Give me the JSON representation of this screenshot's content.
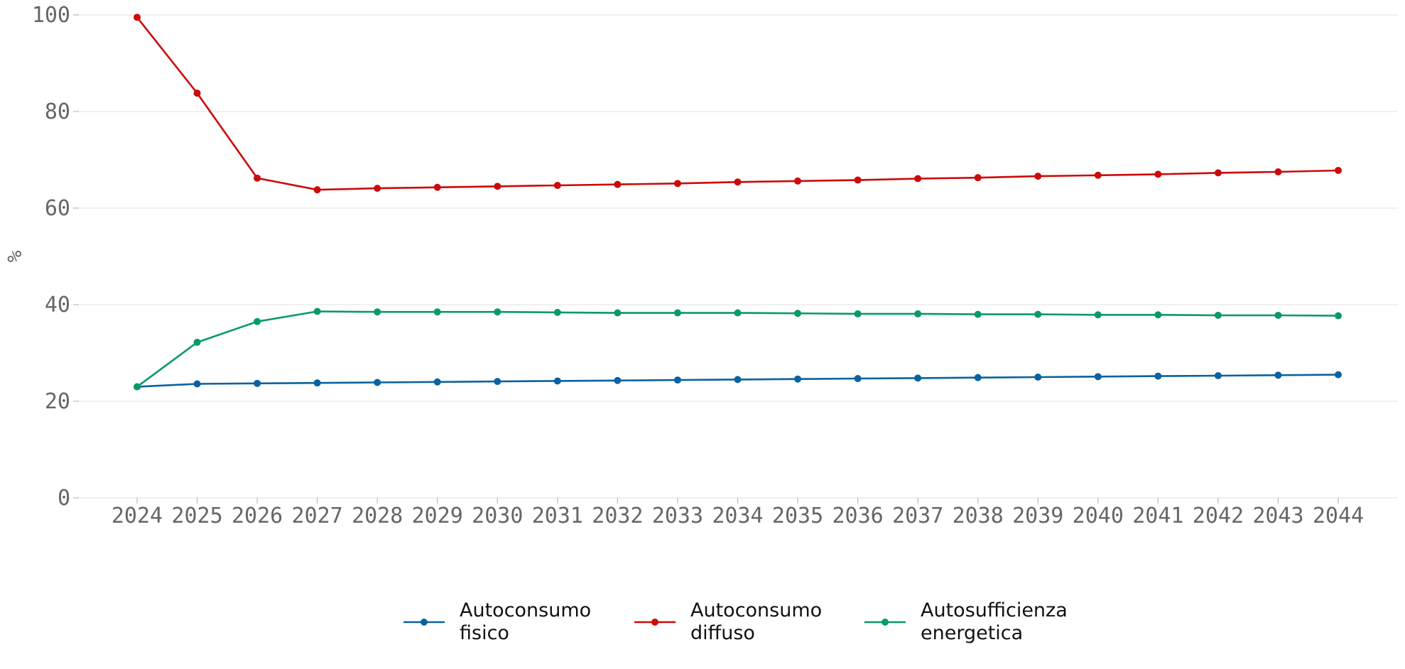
{
  "chart_data": {
    "type": "line",
    "title": "",
    "xlabel": "",
    "ylabel": "%",
    "ylim": [
      0,
      100
    ],
    "yticks": [
      0,
      20,
      40,
      60,
      80,
      100
    ],
    "grid": "horizontal",
    "legend_position": "bottom-center",
    "x": [
      "2024",
      "2025",
      "2026",
      "2027",
      "2028",
      "2029",
      "2030",
      "2031",
      "2032",
      "2033",
      "2034",
      "2035",
      "2036",
      "2037",
      "2038",
      "2039",
      "2040",
      "2041",
      "2042",
      "2043",
      "2044"
    ],
    "series": [
      {
        "name": "Autoconsumo fisico",
        "legend_lines": [
          "Autoconsumo",
          "fisico"
        ],
        "color": "#0a62a0",
        "values": [
          23.0,
          23.6,
          23.7,
          23.8,
          23.9,
          24.0,
          24.1,
          24.2,
          24.3,
          24.4,
          24.5,
          24.6,
          24.7,
          24.8,
          24.9,
          25.0,
          25.1,
          25.2,
          25.3,
          25.4,
          25.5
        ]
      },
      {
        "name": "Autoconsumo diffuso",
        "legend_lines": [
          "Autoconsumo",
          "diffuso"
        ],
        "color": "#cc0a0a",
        "values": [
          99.5,
          83.8,
          66.2,
          63.8,
          64.1,
          64.3,
          64.5,
          64.7,
          64.9,
          65.1,
          65.4,
          65.6,
          65.8,
          66.1,
          66.3,
          66.6,
          66.8,
          67.0,
          67.3,
          67.5,
          67.8
        ]
      },
      {
        "name": "Autosufficienza energetica",
        "legend_lines": [
          "Autosufficienza",
          "energetica"
        ],
        "color": "#089a68",
        "values": [
          23.0,
          32.2,
          36.5,
          38.6,
          38.5,
          38.5,
          38.5,
          38.4,
          38.3,
          38.3,
          38.3,
          38.2,
          38.1,
          38.1,
          38.0,
          38.0,
          37.9,
          37.9,
          37.8,
          37.8,
          37.7
        ]
      }
    ]
  }
}
